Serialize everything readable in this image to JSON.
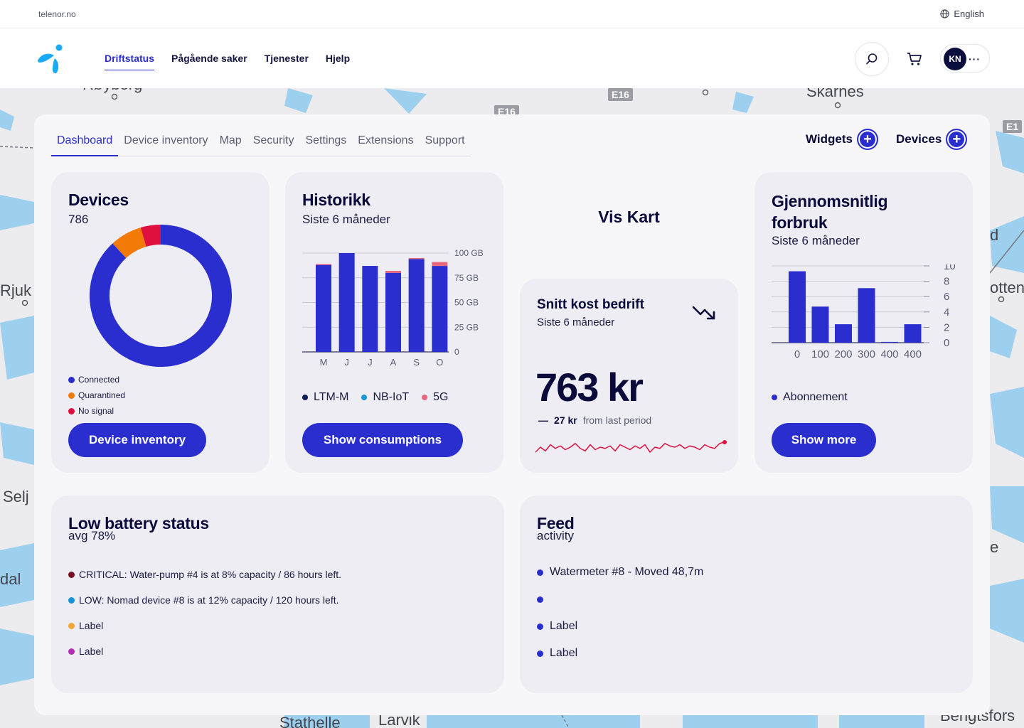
{
  "topbar": {
    "domain": "telenor.no",
    "language": "English"
  },
  "nav": {
    "items": [
      "Driftstatus",
      "Pågående saker",
      "Tjenester",
      "Hjelp"
    ],
    "active": "Driftstatus"
  },
  "user": {
    "initials": "KN",
    "more": "···"
  },
  "map": {
    "labels": [
      "Røyberg",
      "Skarnes",
      "Rjuk",
      "Selj",
      "dal",
      "Stathelle",
      "Larvik",
      "Bengtsfors",
      "otten",
      "d",
      "e"
    ],
    "roads": [
      "E16",
      "E16",
      "E1"
    ]
  },
  "tabs": [
    "Dashboard",
    "Device inventory",
    "Map",
    "Security",
    "Settings",
    "Extensions",
    "Support"
  ],
  "actions": {
    "widgets": "Widgets",
    "devices": "Devices"
  },
  "colors": {
    "accent": "#2a2ecf",
    "orange": "#f47a08",
    "red": "#e0103e",
    "navy": "#0a0b3b"
  },
  "devices_card": {
    "title": "Devices",
    "count": "786",
    "legend": [
      {
        "label": "Connected",
        "color": "#2a2ecf"
      },
      {
        "label": "Quarantined",
        "color": "#f47a08"
      },
      {
        "label": "No signal",
        "color": "#e0103e"
      }
    ],
    "button": "Device inventory"
  },
  "historikk_card": {
    "title": "Historikk",
    "subtitle": "Siste 6 måneder",
    "legend": [
      {
        "label": "LTM-M",
        "color": "#0b1d5a"
      },
      {
        "label": "NB-IoT",
        "color": "#1a93d6"
      },
      {
        "label": "5G",
        "color": "#e8687e"
      }
    ],
    "button": "Show consumptions"
  },
  "vis_kart": {
    "label": "Vis Kart"
  },
  "snitt_card": {
    "title": "Snitt kost bedrift",
    "subtitle": "Siste 6 måneder",
    "value": "763 kr",
    "delta_sign": "—",
    "delta": "27 kr",
    "delta_label": "from last period",
    "trend_icon": "trending-down-icon",
    "sparkline": [
      6,
      10,
      7,
      12,
      9,
      11,
      8,
      10,
      13,
      9,
      7,
      12,
      8,
      10,
      9,
      11,
      7,
      12,
      10,
      8,
      11,
      9,
      12,
      6,
      10,
      9,
      13,
      11,
      10,
      12,
      9,
      11,
      10,
      8,
      12,
      10,
      9,
      13,
      14
    ]
  },
  "forbruk_card": {
    "title": "Gjennomsnitlig forbruk",
    "subtitle": "Siste 6 måneder",
    "legend": [
      {
        "label": "Abonnement",
        "color": "#2a2ecf"
      }
    ],
    "button": "Show more"
  },
  "battery_card": {
    "title": "Low battery status",
    "subtitle": "avg 78%",
    "items": [
      {
        "text": "CRITICAL: Water-pump #4 is at 8% capacity / 86 hours left.",
        "color": "#7a0f24"
      },
      {
        "text": "LOW: Nomad device #8 is at 12% capacity / 120 hours left.",
        "color": "#1a93d6"
      },
      {
        "text": "Label",
        "color": "#f2a63a"
      },
      {
        "text": "Label",
        "color": "#b02fb5"
      }
    ]
  },
  "feed_card": {
    "title": "Feed",
    "subtitle": "activity",
    "items": [
      {
        "text": "Watermeter #8 - Moved 48,7m"
      },
      {
        "text": ""
      },
      {
        "text": "Label"
      },
      {
        "text": "Label"
      }
    ]
  },
  "chart_data": [
    {
      "type": "pie",
      "categories": [
        "Connected",
        "Quarantined",
        "No signal"
      ],
      "values": [
        693,
        57,
        36
      ]
    },
    {
      "type": "bar",
      "categories": [
        "M",
        "J",
        "J",
        "A",
        "S",
        "O"
      ],
      "series": [
        {
          "name": "LTM-M",
          "values": [
            88,
            100,
            87,
            80,
            94,
            87
          ]
        },
        {
          "name": "NB-IoT",
          "values": [
            0,
            0,
            0,
            0,
            0,
            0
          ]
        },
        {
          "name": "5G",
          "values": [
            1,
            0,
            0,
            2,
            1,
            4
          ]
        }
      ],
      "yticks": [
        "100 GB",
        "75 GB",
        "50 GB",
        "25 GB",
        "0"
      ],
      "ylim": [
        0,
        100
      ]
    },
    {
      "type": "bar",
      "categories": [
        "0",
        "100",
        "200",
        "300",
        "400",
        "400"
      ],
      "series": [
        {
          "name": "Abonnement",
          "values": [
            9.3,
            4.7,
            2.4,
            7.1,
            0.1,
            2.4
          ]
        }
      ],
      "yticks": [
        "10",
        "8",
        "6",
        "4",
        "2",
        "0"
      ],
      "ylim": [
        0,
        10
      ]
    }
  ]
}
